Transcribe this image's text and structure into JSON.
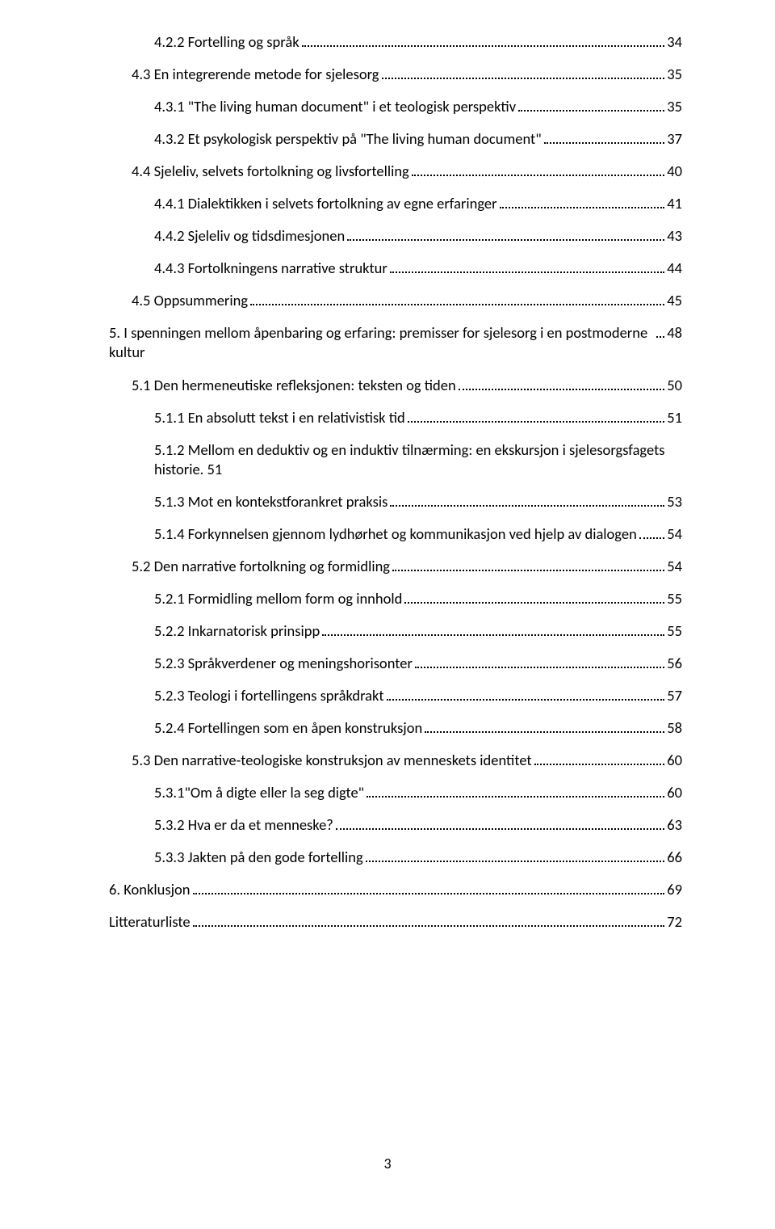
{
  "pageNumber": "3",
  "entries": [
    {
      "level": 3,
      "title": "4.2.2 Fortelling og språk",
      "page": "34",
      "suffix": ""
    },
    {
      "level": 2,
      "title": "4.3 En integrerende metode for sjelesorg",
      "page": "35",
      "suffix": ""
    },
    {
      "level": 3,
      "title": "4.3.1 \"The living human document\" i et teologisk perspektiv",
      "page": "35",
      "suffix": ""
    },
    {
      "level": 3,
      "title": "4.3.2 Et psykologisk perspektiv på \"The living human document\"",
      "page": "37",
      "suffix": ""
    },
    {
      "level": 2,
      "title": "4.4 Sjeleliv, selvets fortolkning og livsfortelling",
      "page": "40",
      "suffix": ""
    },
    {
      "level": 3,
      "title": "4.4.1 Dialektikken i selvets fortolkning av egne erfaringer",
      "page": "41",
      "suffix": ""
    },
    {
      "level": 3,
      "title": "4.4.2 Sjeleliv og tidsdimesjonen",
      "page": "43",
      "suffix": ""
    },
    {
      "level": 3,
      "title": "4.4.3 Fortolkningens narrative struktur",
      "page": "44",
      "suffix": ""
    },
    {
      "level": 2,
      "title": "4.5 Oppsummering",
      "page": "45",
      "suffix": ""
    },
    {
      "level": 1,
      "title": "5. I spenningen mellom åpenbaring og erfaring: premisser for sjelesorg i en postmoderne kultur",
      "page": "48",
      "suffix": ""
    },
    {
      "level": 2,
      "title": "5.1 Den hermeneutiske refleksjonen: teksten og tiden",
      "page": "50",
      "suffix": ""
    },
    {
      "level": 3,
      "title": "5.1.1 En absolutt tekst i en relativistisk tid",
      "page": "51",
      "suffix": ""
    },
    {
      "level": 3,
      "title": "5.1.2 Mellom en deduktiv og en induktiv tilnærming: en ekskursjon i sjelesorgsfagets historie",
      "page": "51",
      "suffix": "dot"
    },
    {
      "level": 3,
      "title": "5.1.3 Mot en kontekstforankret praksis",
      "page": "53",
      "suffix": ""
    },
    {
      "level": 3,
      "title": "5.1.4 Forkynnelsen gjennom lydhørhet og kommunikasjon ved hjelp av dialogen",
      "page": "54",
      "suffix": ""
    },
    {
      "level": 2,
      "title": "5.2 Den narrative fortolkning og formidling",
      "page": "54",
      "suffix": ""
    },
    {
      "level": 3,
      "title": "5.2.1 Formidling mellom form og innhold",
      "page": "55",
      "suffix": ""
    },
    {
      "level": 3,
      "title": "5.2.2 Inkarnatorisk prinsipp",
      "page": "55",
      "suffix": ""
    },
    {
      "level": 3,
      "title": "5.2.3 Språkverdener og meningshorisonter",
      "page": "56",
      "suffix": ""
    },
    {
      "level": 3,
      "title": "5.2.3 Teologi i fortellingens språkdrakt",
      "page": "57",
      "suffix": ""
    },
    {
      "level": 3,
      "title": "5.2.4 Fortellingen som en åpen konstruksjon",
      "page": "58",
      "suffix": ""
    },
    {
      "level": 2,
      "title": "5.3 Den narrative-teologiske konstruksjon av menneskets identitet",
      "page": "60",
      "suffix": ""
    },
    {
      "level": 3,
      "title": "5.3.1\"Om å digte eller la seg digte\"",
      "page": "60",
      "suffix": ""
    },
    {
      "level": 3,
      "title": "5.3.2 Hva er da et menneske?",
      "page": "63",
      "suffix": ""
    },
    {
      "level": 3,
      "title": "5.3.3 Jakten på den gode fortelling",
      "page": "66",
      "suffix": ""
    },
    {
      "level": 1,
      "title": "6. Konklusjon",
      "page": "69",
      "suffix": ""
    },
    {
      "level": 1,
      "title": "Litteraturliste",
      "page": "72",
      "suffix": ""
    }
  ]
}
